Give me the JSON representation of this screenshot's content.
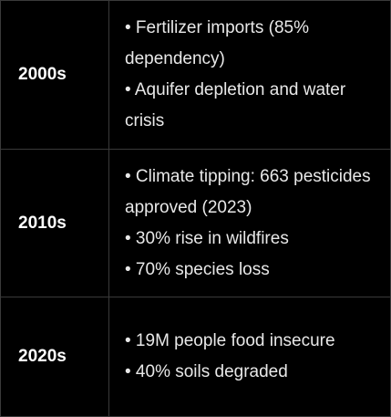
{
  "rows": [
    {
      "decade": "2000s",
      "points": [
        "• Fertilizer imports (85% dependency)",
        "• Aquifer depletion and water crisis"
      ]
    },
    {
      "decade": "2010s",
      "points": [
        "• Climate tipping: 663 pesticides approved (2023)",
        "• 30% rise in wildfires",
        "• 70% species loss"
      ]
    },
    {
      "decade": "2020s",
      "points": [
        "• 19M people food insecure",
        "• 40% soils degraded"
      ]
    }
  ]
}
